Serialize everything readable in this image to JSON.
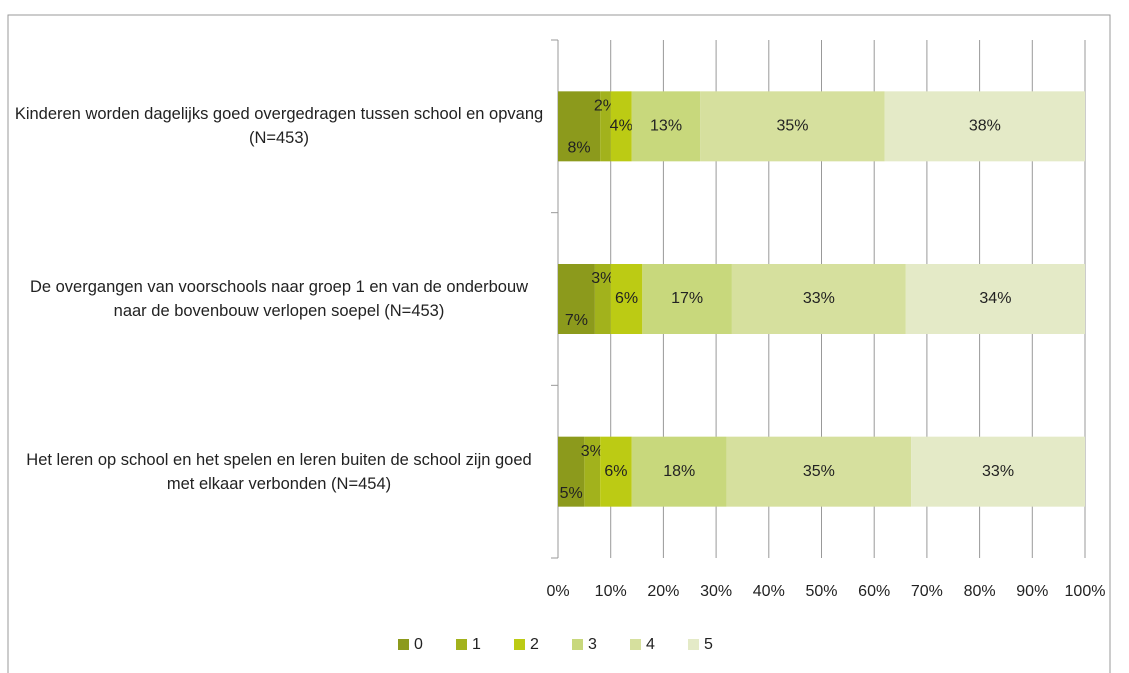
{
  "chart_data": {
    "type": "stacked-barh",
    "categories": [
      "Kinderen worden dagelijks goed overgedragen tussen school en opvang (N=453)",
      "De overgangen van voorschools naar groep 1 en van de onderbouw naar de bovenbouw verlopen soepel (N=453)",
      "Het leren op school en het spelen en leren buiten de school zijn goed met elkaar verbonden (N=454)"
    ],
    "series": [
      {
        "name": "0",
        "color": "#8c9a1c",
        "values": [
          8,
          7,
          5
        ],
        "value_labels": [
          "8%",
          "7%",
          "5%"
        ]
      },
      {
        "name": "1",
        "color": "#a2b21c",
        "values": [
          2,
          3,
          3
        ],
        "value_labels": [
          "2%",
          "3%",
          "3%"
        ]
      },
      {
        "name": "2",
        "color": "#bccb14",
        "values": [
          4,
          6,
          6
        ],
        "value_labels": [
          "4%",
          "6%",
          "6%"
        ]
      },
      {
        "name": "3",
        "color": "#c8d87c",
        "values": [
          13,
          17,
          18
        ],
        "value_labels": [
          "13%",
          "17%",
          "18%"
        ]
      },
      {
        "name": "4",
        "color": "#d6e09e",
        "values": [
          35,
          33,
          35
        ],
        "value_labels": [
          "35%",
          "33%",
          "35%"
        ]
      },
      {
        "name": "5",
        "color": "#e4eac7",
        "values": [
          38,
          34,
          33
        ],
        "value_labels": [
          "38%",
          "34%",
          "33%"
        ]
      }
    ],
    "xlim": [
      0,
      100
    ],
    "xticks": [
      {
        "value": 0,
        "label": "0%"
      },
      {
        "value": 10,
        "label": "10%"
      },
      {
        "value": 20,
        "label": "20%"
      },
      {
        "value": 30,
        "label": "30%"
      },
      {
        "value": 40,
        "label": "40%"
      },
      {
        "value": 50,
        "label": "50%"
      },
      {
        "value": 60,
        "label": "60%"
      },
      {
        "value": 70,
        "label": "70%"
      },
      {
        "value": 80,
        "label": "80%"
      },
      {
        "value": 90,
        "label": "90%"
      },
      {
        "value": 100,
        "label": "100%"
      }
    ],
    "grid": true,
    "legend": "bottom"
  }
}
